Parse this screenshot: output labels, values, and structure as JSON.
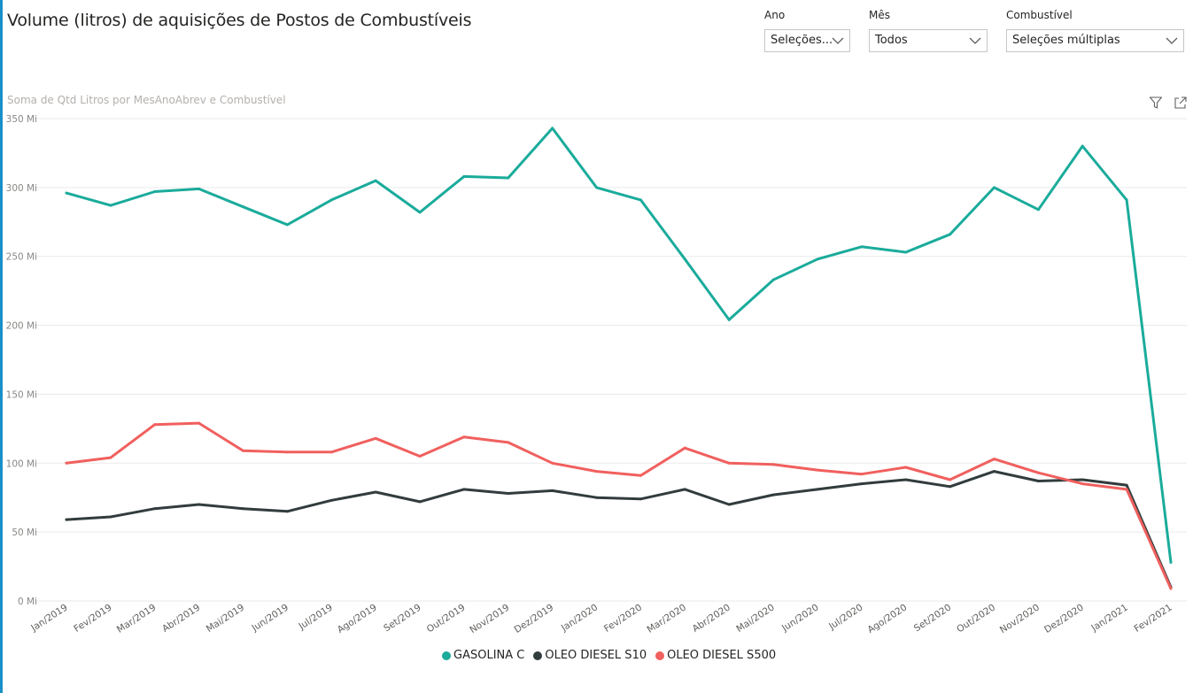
{
  "title": "Volume (litros) de aquisições de Postos de Combustíveis",
  "subtitle": "Soma de Qtd Litros por MesAnoAbrev e Combustível",
  "slicers": {
    "ano": {
      "label": "Ano",
      "value": "Seleções..."
    },
    "mes": {
      "label": "Mês",
      "value": "Todos"
    },
    "combustivel": {
      "label": "Combustível",
      "value": "Seleções múltiplas"
    }
  },
  "icons": {
    "filter": "filter-icon",
    "focus": "focus-mode-icon",
    "dropdown": "chevron-down-icon"
  },
  "chart_data": {
    "type": "line",
    "title": "Soma de Qtd Litros por MesAnoAbrev e Combustível",
    "xlabel": "",
    "ylabel": "",
    "ylim": [
      0,
      350
    ],
    "yticks": [
      0,
      50,
      100,
      150,
      200,
      250,
      300,
      350
    ],
    "ytick_labels": [
      "0 Mi",
      "50 Mi",
      "100 Mi",
      "150 Mi",
      "200 Mi",
      "250 Mi",
      "300 Mi",
      "350 Mi"
    ],
    "grid": true,
    "legend_position": "bottom-center",
    "categories": [
      "Jan/2019",
      "Fev/2019",
      "Mar/2019",
      "Abr/2019",
      "Mai/2019",
      "Jun/2019",
      "Jul/2019",
      "Ago/2019",
      "Set/2019",
      "Out/2019",
      "Nov/2019",
      "Dez/2019",
      "Jan/2020",
      "Fev/2020",
      "Mar/2020",
      "Abr/2020",
      "Mai/2020",
      "Jun/2020",
      "Jul/2020",
      "Ago/2020",
      "Set/2020",
      "Out/2020",
      "Nov/2020",
      "Dez/2020",
      "Jan/2021",
      "Fev/2021"
    ],
    "series": [
      {
        "name": "GASOLINA C",
        "color": "#1aab9b",
        "values": [
          296,
          287,
          297,
          299,
          286,
          273,
          291,
          305,
          282,
          308,
          307,
          343,
          300,
          291,
          248,
          204,
          233,
          248,
          257,
          253,
          266,
          300,
          284,
          330,
          291,
          28
        ]
      },
      {
        "name": "OLEO DIESEL S10",
        "color": "#323c3d",
        "values": [
          59,
          61,
          67,
          70,
          67,
          65,
          73,
          79,
          72,
          81,
          78,
          80,
          75,
          74,
          81,
          70,
          77,
          81,
          85,
          88,
          83,
          94,
          87,
          88,
          84,
          10
        ]
      },
      {
        "name": "OLEO DIESEL S500",
        "color": "#f0605e",
        "values": [
          100,
          104,
          128,
          129,
          109,
          108,
          108,
          118,
          105,
          119,
          115,
          100,
          94,
          91,
          111,
          100,
          99,
          95,
          92,
          97,
          88,
          103,
          93,
          85,
          81,
          9
        ]
      }
    ]
  }
}
